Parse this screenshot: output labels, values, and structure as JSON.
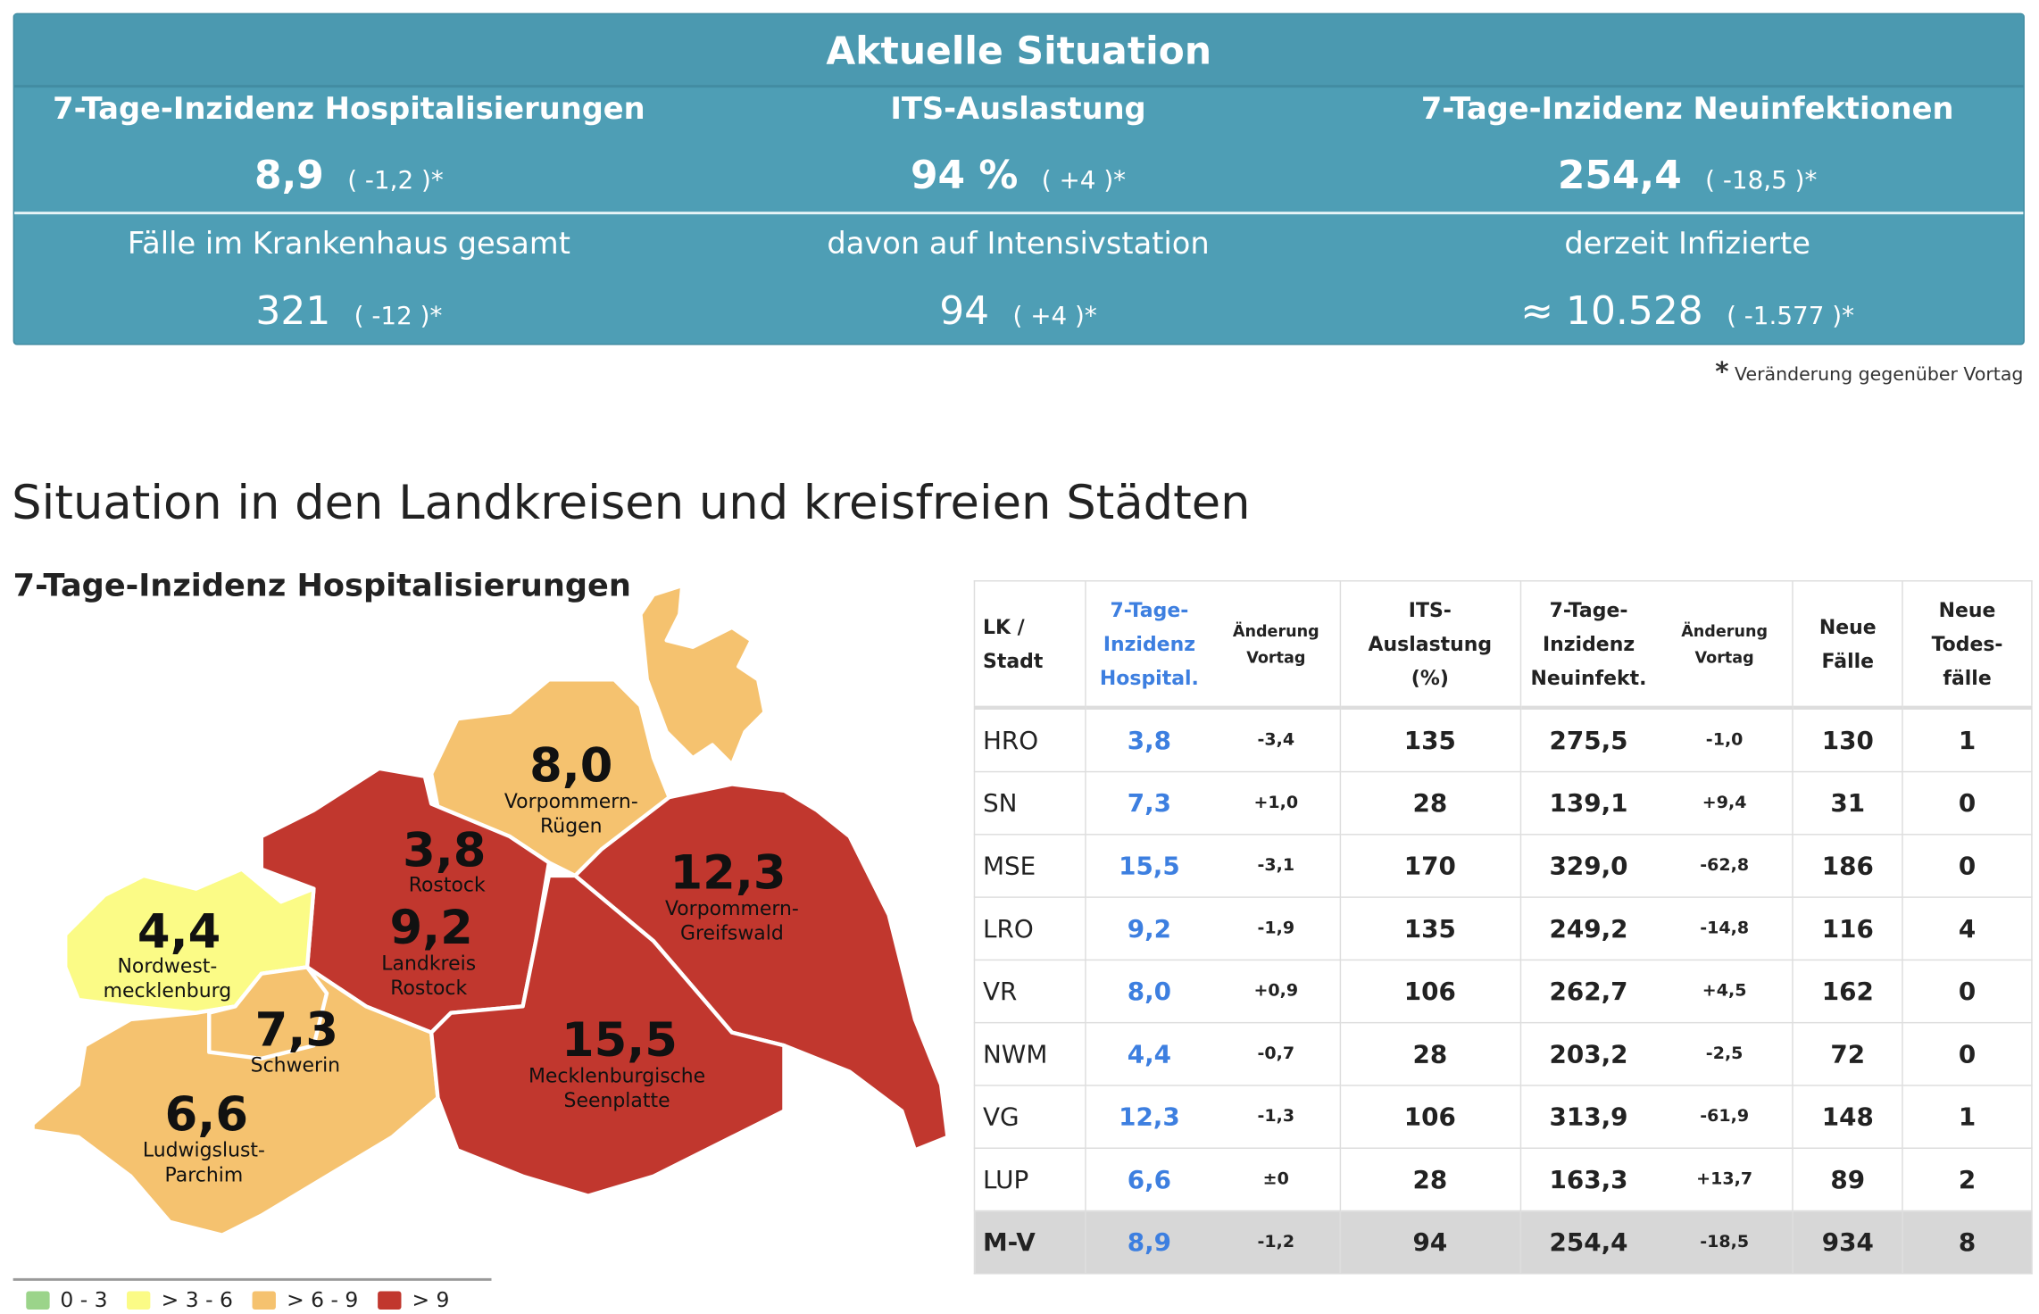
{
  "summary": {
    "title": "Aktuelle Situation",
    "top": [
      {
        "label": "7-Tage-Inzidenz Hospitalisierungen",
        "value": "8,9",
        "change": "( -1,2 )*"
      },
      {
        "label": "ITS-Auslastung",
        "value": "94 %",
        "change": "( +4 )*"
      },
      {
        "label": "7-Tage-Inzidenz Neuinfektionen",
        "value": "254,4",
        "change": "( -18,5 )*"
      }
    ],
    "bottom": [
      {
        "label": "Fälle im Krankenhaus gesamt",
        "value": "321",
        "change": "( -12 )*"
      },
      {
        "label": "davon auf Intensivstation",
        "value": "94",
        "change": "( +4 )*"
      },
      {
        "label": "derzeit Infizierte",
        "value": "≈ 10.528",
        "change": "( -1.577 )*"
      }
    ],
    "footnote_star": "*",
    "footnote": "Veränderung gegenüber Vortag"
  },
  "section_title": "Situation in den Landkreisen und kreisfreien Städten",
  "map": {
    "title": "7-Tage-Inzidenz Hospitalisierungen",
    "colors": {
      "0-3": "#9bd48a",
      "3-6": "#fbfb86",
      "6-9": "#f5c26f",
      "9+": "#c1372e"
    },
    "regions": {
      "VR": {
        "value": "8,0",
        "name1": "Vorpommern-",
        "name2": "Rügen"
      },
      "HRO": {
        "value": "3,8",
        "name1": "Rostock"
      },
      "VG": {
        "value": "12,3",
        "name1": "Vorpommern-",
        "name2": "Greifswald"
      },
      "NWM": {
        "value": "4,4",
        "name1": "Nordwest-",
        "name2": "mecklenburg"
      },
      "LRO": {
        "value": "9,2",
        "name1": "Landkreis",
        "name2": "Rostock"
      },
      "SN": {
        "value": "7,3",
        "name1": "Schwerin"
      },
      "MSE": {
        "value": "15,5",
        "name1": "Mecklenburgische",
        "name2": "Seenplatte"
      },
      "LUP": {
        "value": "6,6",
        "name1": "Ludwigslust-",
        "name2": "Parchim"
      }
    },
    "legend": [
      "0 - 3",
      "> 3 - 6",
      "> 6 - 9",
      "> 9"
    ]
  },
  "table": {
    "headers": {
      "lk": [
        "LK /",
        "Stadt"
      ],
      "hosp": [
        "7-Tage-",
        "Inzidenz",
        "Hospital."
      ],
      "chg": [
        "Änderung",
        "Vortag"
      ],
      "its": [
        "ITS-",
        "Auslastung",
        "(%)"
      ],
      "neu": [
        "7-Tage-",
        "Inzidenz",
        "Neuinfekt."
      ],
      "faelle": [
        "Neue",
        "Fälle"
      ],
      "tod": [
        "Neue",
        "Todes-",
        "fälle"
      ]
    },
    "rows": [
      [
        "HRO",
        "3,8",
        "-3,4",
        "135",
        "275,5",
        "-1,0",
        "130",
        "1"
      ],
      [
        "SN",
        "7,3",
        "+1,0",
        "28",
        "139,1",
        "+9,4",
        "31",
        "0"
      ],
      [
        "MSE",
        "15,5",
        "-3,1",
        "170",
        "329,0",
        "-62,8",
        "186",
        "0"
      ],
      [
        "LRO",
        "9,2",
        "-1,9",
        "135",
        "249,2",
        "-14,8",
        "116",
        "4"
      ],
      [
        "VR",
        "8,0",
        "+0,9",
        "106",
        "262,7",
        "+4,5",
        "162",
        "0"
      ],
      [
        "NWM",
        "4,4",
        "-0,7",
        "28",
        "203,2",
        "-2,5",
        "72",
        "0"
      ],
      [
        "VG",
        "12,3",
        "-1,3",
        "106",
        "313,9",
        "-61,9",
        "148",
        "1"
      ],
      [
        "LUP",
        "6,6",
        "±0",
        "28",
        "163,3",
        "+13,7",
        "89",
        "2"
      ]
    ],
    "total": [
      "M-V",
      "8,9",
      "-1,2",
      "94",
      "254,4",
      "-18,5",
      "934",
      "8"
    ]
  }
}
